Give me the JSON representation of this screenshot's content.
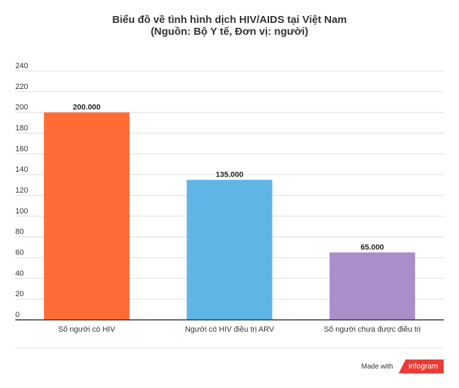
{
  "chart_data": {
    "type": "bar",
    "title": "Biểu đồ về tình hình dịch HIV/AIDS tại Việt Nam",
    "subtitle": "(Nguồn: Bộ Y tế, Đơn vị: người)",
    "categories": [
      "Số người có HIV",
      "Người có HIV điều trị ARV",
      "Số người chưa được điều trị"
    ],
    "values": [
      200,
      135,
      65
    ],
    "data_labels": [
      "200.000",
      "135.000",
      "65.000"
    ],
    "colors": [
      "#ff6b35",
      "#5fb6e6",
      "#a98fc9"
    ],
    "yticks": [
      "0",
      "20",
      "40",
      "60",
      "80",
      "100",
      "120",
      "140",
      "160",
      "180",
      "200",
      "220",
      "240"
    ],
    "ylim": [
      0,
      240
    ],
    "grid": true,
    "xlabel": "",
    "ylabel": ""
  },
  "footer": {
    "made_with": "Made with",
    "brand": "infogram"
  }
}
